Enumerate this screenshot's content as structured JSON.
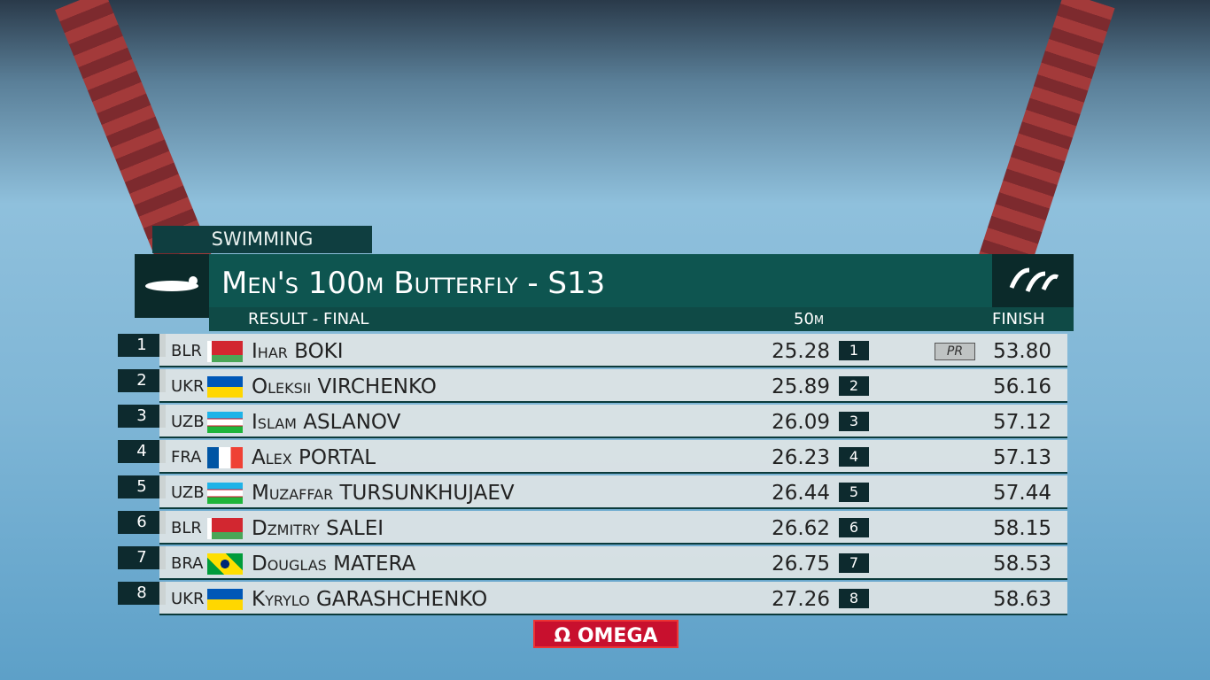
{
  "header": {
    "sport": "SWIMMING",
    "title": "Men's 100m Butterfly - S13",
    "subtitle": "RESULT - FINAL",
    "split_label": "50m",
    "finish_label": "FINISH"
  },
  "table": {
    "rows": [
      {
        "rank": "1",
        "country": "BLR",
        "name": "Ihar BOKI",
        "split": "25.28",
        "split_rank": "1",
        "badge": "PR",
        "finish": "53.80"
      },
      {
        "rank": "2",
        "country": "UKR",
        "name": "Oleksii VIRCHENKO",
        "split": "25.89",
        "split_rank": "2",
        "finish": "56.16"
      },
      {
        "rank": "3",
        "country": "UZB",
        "name": "Islam ASLANOV",
        "split": "26.09",
        "split_rank": "3",
        "finish": "57.12"
      },
      {
        "rank": "4",
        "country": "FRA",
        "name": "Alex PORTAL",
        "split": "26.23",
        "split_rank": "4",
        "finish": "57.13"
      },
      {
        "rank": "5",
        "country": "UZB",
        "name": "Muzaffar TURSUNKHUJAEV",
        "split": "26.44",
        "split_rank": "5",
        "finish": "57.44"
      },
      {
        "rank": "6",
        "country": "BLR",
        "name": "Dzmitry SALEI",
        "split": "26.62",
        "split_rank": "6",
        "finish": "58.15"
      },
      {
        "rank": "7",
        "country": "BRA",
        "name": "Douglas MATERA",
        "split": "26.75",
        "split_rank": "7",
        "finish": "58.53"
      },
      {
        "rank": "8",
        "country": "UKR",
        "name": "Kyrylo GARASHCHENKO",
        "split": "27.26",
        "split_rank": "8",
        "finish": "58.63"
      }
    ]
  },
  "sponsor": "Ω OMEGA"
}
